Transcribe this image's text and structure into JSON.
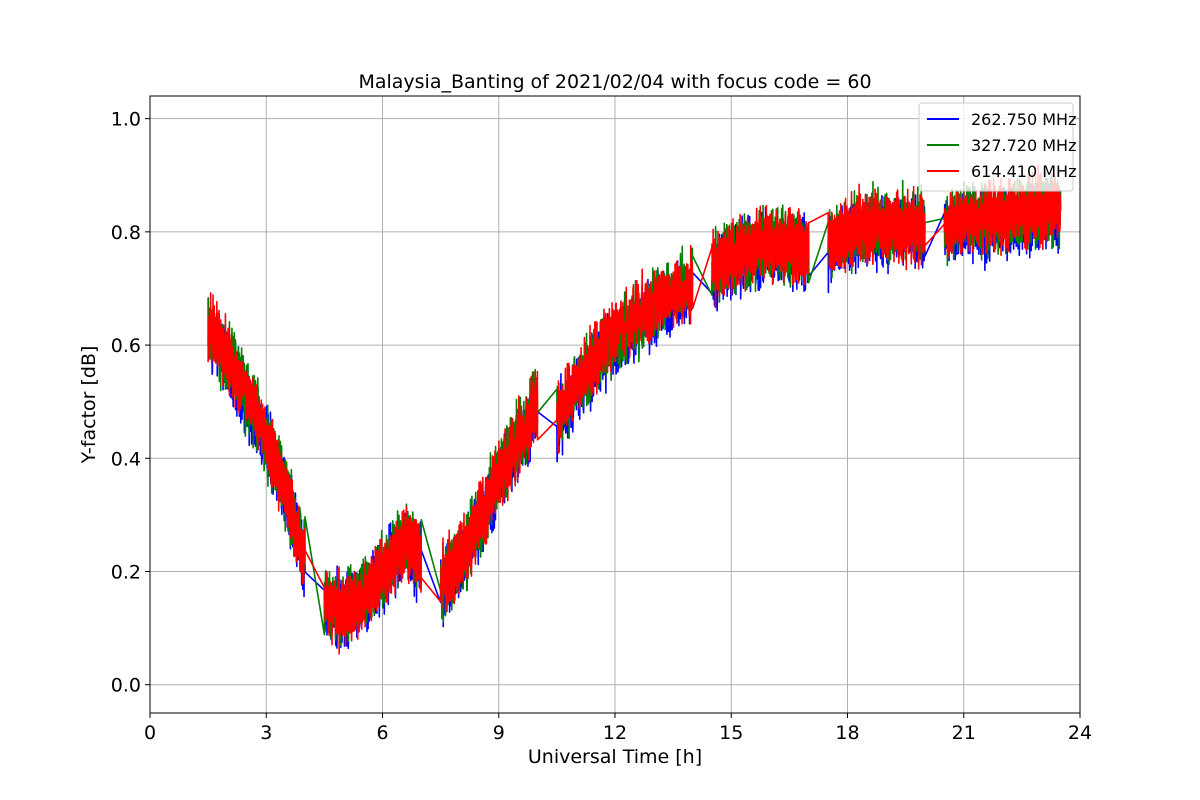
{
  "chart_data": {
    "type": "line",
    "title": "Malaysia_Banting of 2021/02/04 with focus code = 60",
    "xlabel": "Universal Time [h]",
    "ylabel": "Y-factor [dB]",
    "xlim": [
      0,
      24
    ],
    "ylim": [
      -0.05,
      1.04
    ],
    "xticks": [
      0,
      3,
      6,
      9,
      12,
      15,
      18,
      21,
      24
    ],
    "yticks": [
      0.0,
      0.2,
      0.4,
      0.6,
      0.8,
      1.0
    ],
    "xtick_labels": [
      "0",
      "3",
      "6",
      "9",
      "12",
      "15",
      "18",
      "21",
      "24"
    ],
    "ytick_labels": [
      "0.0",
      "0.2",
      "0.4",
      "0.6",
      "0.8",
      "1.0"
    ],
    "grid": true,
    "legend_position": "top-right",
    "observation_windows": [
      [
        1.5,
        4.0
      ],
      [
        4.5,
        7.0
      ],
      [
        7.5,
        10.0
      ],
      [
        10.5,
        14.0
      ],
      [
        14.5,
        17.0
      ],
      [
        17.5,
        20.0
      ],
      [
        20.5,
        23.5
      ]
    ],
    "series": [
      {
        "name": "262.750 MHz",
        "color": "#0000ff",
        "x": [
          1.5,
          2.0,
          2.5,
          3.0,
          3.5,
          4.0,
          4.5,
          5.0,
          5.5,
          6.0,
          6.5,
          7.0,
          7.5,
          8.0,
          8.5,
          9.0,
          9.5,
          10.0,
          10.5,
          11.0,
          11.5,
          12.0,
          12.5,
          13.0,
          13.5,
          14.0,
          14.5,
          15.0,
          15.5,
          16.0,
          16.5,
          17.0,
          17.5,
          18.0,
          18.5,
          19.0,
          19.5,
          20.0,
          20.5,
          21.0,
          21.5,
          22.0,
          22.5,
          23.0,
          23.5
        ],
        "y": [
          0.62,
          0.57,
          0.5,
          0.43,
          0.34,
          0.22,
          0.14,
          0.13,
          0.15,
          0.19,
          0.24,
          0.22,
          0.17,
          0.21,
          0.28,
          0.36,
          0.42,
          0.48,
          0.46,
          0.52,
          0.57,
          0.6,
          0.63,
          0.66,
          0.68,
          0.7,
          0.72,
          0.75,
          0.76,
          0.77,
          0.77,
          0.76,
          0.77,
          0.79,
          0.8,
          0.8,
          0.8,
          0.8,
          0.8,
          0.81,
          0.81,
          0.82,
          0.82,
          0.83,
          0.83
        ]
      },
      {
        "name": "327.720 MHz",
        "color": "#008000",
        "x": [
          1.5,
          2.0,
          2.5,
          3.0,
          3.5,
          4.0,
          4.5,
          5.0,
          5.5,
          6.0,
          6.5,
          7.0,
          7.5,
          8.0,
          8.5,
          9.0,
          9.5,
          10.0,
          10.5,
          11.0,
          11.5,
          12.0,
          12.5,
          13.0,
          13.5,
          14.0,
          14.5,
          15.0,
          15.5,
          16.0,
          16.5,
          17.0,
          17.5,
          18.0,
          18.5,
          19.0,
          19.5,
          20.0,
          20.5,
          21.0,
          21.5,
          22.0,
          22.5,
          23.0,
          23.5
        ],
        "y": [
          0.63,
          0.58,
          0.51,
          0.44,
          0.35,
          0.23,
          0.15,
          0.14,
          0.16,
          0.2,
          0.25,
          0.23,
          0.18,
          0.22,
          0.29,
          0.37,
          0.43,
          0.49,
          0.47,
          0.53,
          0.58,
          0.61,
          0.64,
          0.67,
          0.69,
          0.71,
          0.73,
          0.76,
          0.77,
          0.78,
          0.78,
          0.77,
          0.78,
          0.8,
          0.81,
          0.81,
          0.81,
          0.81,
          0.81,
          0.82,
          0.82,
          0.83,
          0.83,
          0.84,
          0.84
        ]
      },
      {
        "name": "614.410 MHz",
        "color": "#ff0000",
        "x": [
          1.5,
          2.0,
          2.5,
          3.0,
          3.5,
          4.0,
          4.5,
          5.0,
          5.5,
          6.0,
          6.5,
          7.0,
          7.5,
          8.0,
          8.5,
          9.0,
          9.5,
          10.0,
          10.5,
          11.0,
          11.5,
          12.0,
          12.5,
          13.0,
          13.5,
          14.0,
          14.5,
          15.0,
          15.5,
          16.0,
          16.5,
          17.0,
          17.5,
          18.0,
          18.5,
          19.0,
          19.5,
          20.0,
          20.5,
          21.0,
          21.5,
          22.0,
          22.5,
          23.0,
          23.5
        ],
        "y": [
          0.64,
          0.58,
          0.51,
          0.44,
          0.34,
          0.22,
          0.14,
          0.13,
          0.15,
          0.2,
          0.25,
          0.23,
          0.18,
          0.22,
          0.29,
          0.37,
          0.43,
          0.49,
          0.47,
          0.53,
          0.58,
          0.62,
          0.65,
          0.67,
          0.69,
          0.71,
          0.73,
          0.76,
          0.77,
          0.78,
          0.78,
          0.77,
          0.78,
          0.8,
          0.81,
          0.81,
          0.81,
          0.81,
          0.81,
          0.82,
          0.82,
          0.83,
          0.83,
          0.84,
          0.84
        ]
      }
    ]
  }
}
